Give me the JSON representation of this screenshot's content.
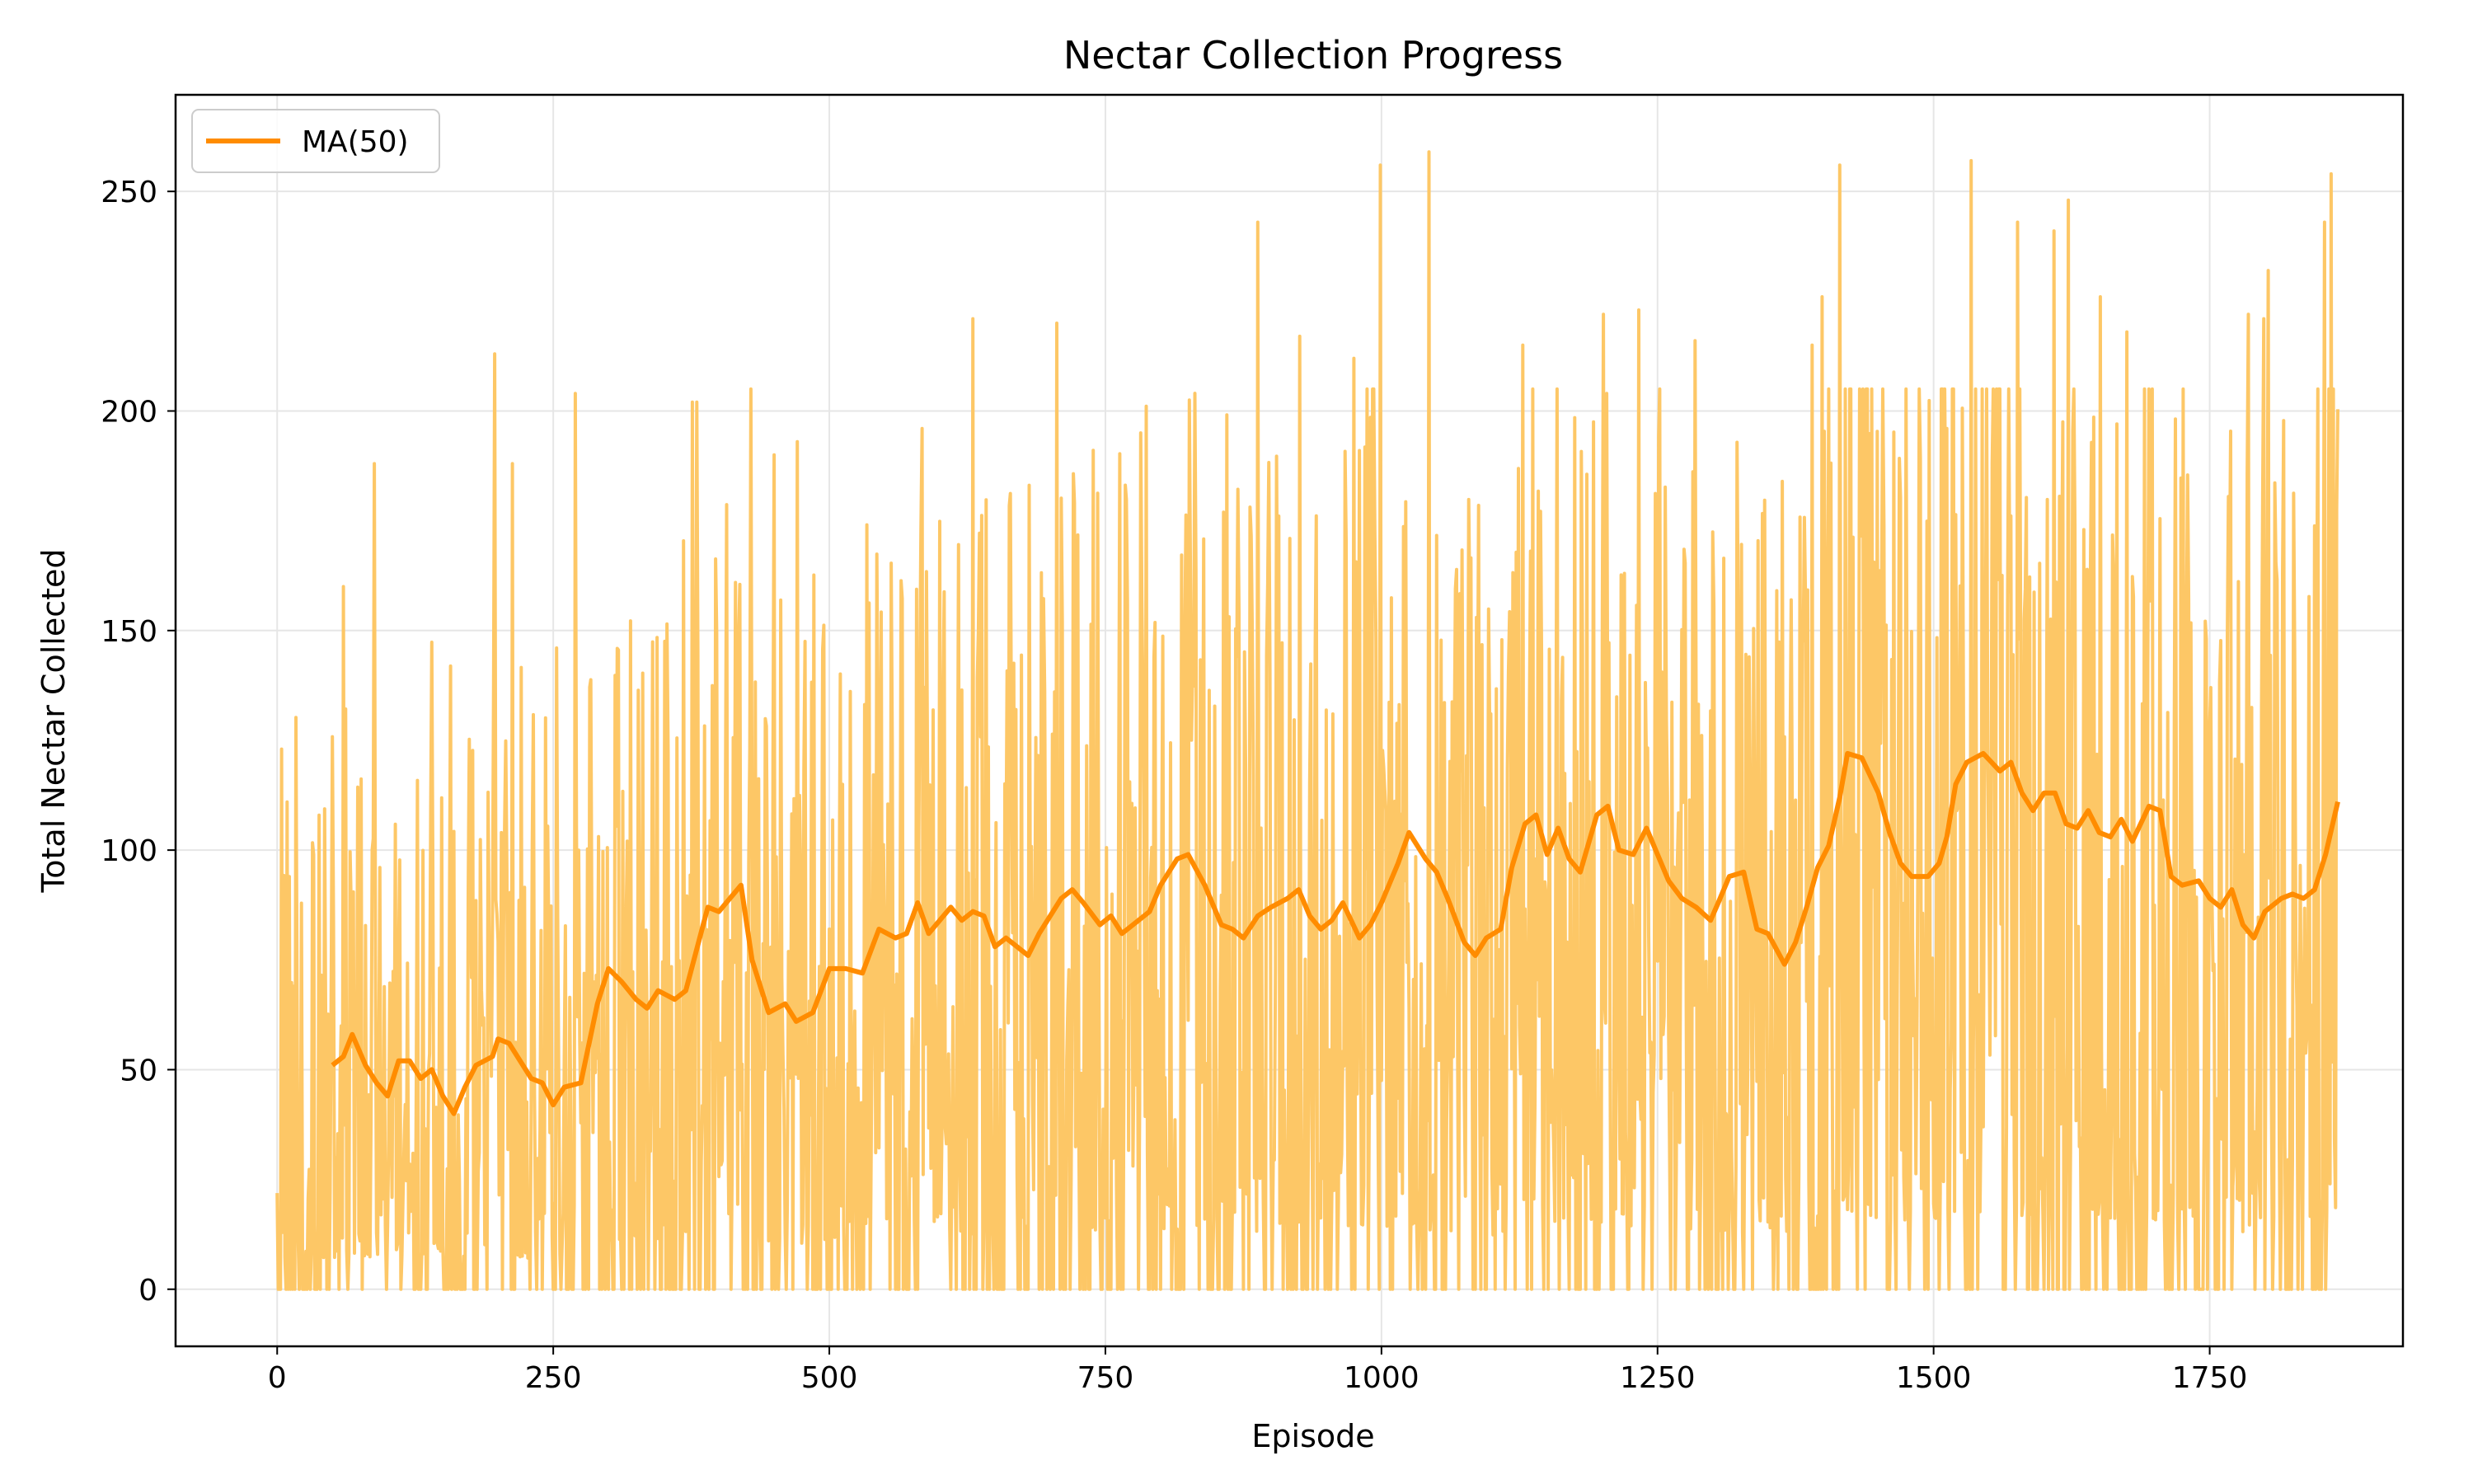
{
  "chart_data": {
    "type": "line",
    "title": "Nectar Collection Progress",
    "xlabel": "Episode",
    "ylabel": "Total Nectar Collected",
    "xlim": [
      -92,
      1925
    ],
    "ylim": [
      -13,
      272
    ],
    "x_ticks": [
      0,
      250,
      500,
      750,
      1000,
      1250,
      1500,
      1750
    ],
    "y_ticks": [
      0,
      50,
      100,
      150,
      200,
      250
    ],
    "grid": true,
    "legend_position": "top-left",
    "colors": {
      "raw": "#fdc766",
      "ma": "#ff8c00",
      "grid": "#e6e6e6",
      "axes": "#000000"
    },
    "series": [
      {
        "name": "",
        "kind": "raw",
        "x_start": 0,
        "x_end": 1866,
        "episodes": 1867,
        "trend_anchors": [
          [
            0,
            48
          ],
          [
            150,
            48
          ],
          [
            260,
            47
          ],
          [
            300,
            70
          ],
          [
            400,
            85
          ],
          [
            450,
            65
          ],
          [
            520,
            75
          ],
          [
            600,
            83
          ],
          [
            700,
            85
          ],
          [
            800,
            92
          ],
          [
            900,
            85
          ],
          [
            1000,
            95
          ],
          [
            1100,
            82
          ],
          [
            1150,
            103
          ],
          [
            1300,
            90
          ],
          [
            1380,
            80
          ],
          [
            1420,
            118
          ],
          [
            1480,
            95
          ],
          [
            1520,
            118
          ],
          [
            1600,
            110
          ],
          [
            1700,
            105
          ],
          [
            1800,
            83
          ],
          [
            1866,
            110
          ]
        ],
        "peaks": [
          [
            4,
            123
          ],
          [
            60,
            160
          ],
          [
            88,
            188
          ],
          [
            197,
            213
          ],
          [
            213,
            188
          ],
          [
            270,
            204
          ],
          [
            376,
            202
          ],
          [
            380,
            202
          ],
          [
            429,
            205
          ],
          [
            450,
            190
          ],
          [
            471,
            193
          ],
          [
            584,
            196
          ],
          [
            630,
            221
          ],
          [
            706,
            220
          ],
          [
            782,
            195
          ],
          [
            888,
            243
          ],
          [
            926,
            217
          ],
          [
            975,
            212
          ],
          [
            999,
            256
          ],
          [
            1043,
            259
          ],
          [
            1128,
            215
          ],
          [
            1201,
            222
          ],
          [
            1233,
            223
          ],
          [
            1284,
            216
          ],
          [
            1390,
            215
          ],
          [
            1399,
            226
          ],
          [
            1415,
            256
          ],
          [
            1534,
            257
          ],
          [
            1576,
            243
          ],
          [
            1609,
            241
          ],
          [
            1622,
            248
          ],
          [
            1651,
            226
          ],
          [
            1675,
            218
          ],
          [
            1785,
            222
          ],
          [
            1799,
            221
          ],
          [
            1803,
            232
          ],
          [
            1854,
            243
          ],
          [
            1860,
            254
          ]
        ]
      },
      {
        "name": "MA(50)",
        "kind": "moving_average",
        "window": 50,
        "points": [
          [
            50,
            51
          ],
          [
            60,
            53
          ],
          [
            68,
            58
          ],
          [
            80,
            51
          ],
          [
            90,
            47
          ],
          [
            100,
            44
          ],
          [
            110,
            52
          ],
          [
            120,
            52
          ],
          [
            130,
            48
          ],
          [
            140,
            50
          ],
          [
            150,
            44
          ],
          [
            160,
            40
          ],
          [
            170,
            46
          ],
          [
            180,
            51
          ],
          [
            195,
            53
          ],
          [
            200,
            57
          ],
          [
            210,
            56
          ],
          [
            220,
            52
          ],
          [
            230,
            48
          ],
          [
            240,
            47
          ],
          [
            250,
            42
          ],
          [
            260,
            46
          ],
          [
            275,
            47
          ],
          [
            290,
            65
          ],
          [
            300,
            73
          ],
          [
            312,
            70
          ],
          [
            325,
            66
          ],
          [
            335,
            64
          ],
          [
            345,
            68
          ],
          [
            360,
            66
          ],
          [
            370,
            68
          ],
          [
            390,
            87
          ],
          [
            400,
            86
          ],
          [
            410,
            89
          ],
          [
            420,
            92
          ],
          [
            430,
            75
          ],
          [
            445,
            63
          ],
          [
            460,
            65
          ],
          [
            470,
            61
          ],
          [
            485,
            63
          ],
          [
            500,
            73
          ],
          [
            515,
            73
          ],
          [
            530,
            72
          ],
          [
            545,
            82
          ],
          [
            560,
            80
          ],
          [
            570,
            81
          ],
          [
            580,
            88
          ],
          [
            590,
            81
          ],
          [
            600,
            84
          ],
          [
            610,
            87
          ],
          [
            620,
            84
          ],
          [
            630,
            86
          ],
          [
            640,
            85
          ],
          [
            650,
            78
          ],
          [
            660,
            80
          ],
          [
            670,
            78
          ],
          [
            680,
            76
          ],
          [
            690,
            81
          ],
          [
            700,
            85
          ],
          [
            710,
            89
          ],
          [
            720,
            91
          ],
          [
            730,
            88
          ],
          [
            745,
            83
          ],
          [
            755,
            85
          ],
          [
            765,
            81
          ],
          [
            775,
            83
          ],
          [
            790,
            86
          ],
          [
            800,
            92
          ],
          [
            815,
            98
          ],
          [
            825,
            99
          ],
          [
            840,
            92
          ],
          [
            855,
            83
          ],
          [
            865,
            82
          ],
          [
            875,
            80
          ],
          [
            888,
            85
          ],
          [
            900,
            87
          ],
          [
            915,
            89
          ],
          [
            925,
            91
          ],
          [
            935,
            85
          ],
          [
            945,
            82
          ],
          [
            955,
            84
          ],
          [
            965,
            88
          ],
          [
            980,
            80
          ],
          [
            990,
            83
          ],
          [
            1000,
            88
          ],
          [
            1015,
            97
          ],
          [
            1025,
            104
          ],
          [
            1040,
            98
          ],
          [
            1050,
            95
          ],
          [
            1060,
            89
          ],
          [
            1075,
            79
          ],
          [
            1085,
            76
          ],
          [
            1095,
            80
          ],
          [
            1108,
            82
          ],
          [
            1118,
            96
          ],
          [
            1130,
            106
          ],
          [
            1140,
            108
          ],
          [
            1150,
            99
          ],
          [
            1160,
            105
          ],
          [
            1170,
            98
          ],
          [
            1180,
            95
          ],
          [
            1195,
            108
          ],
          [
            1205,
            110
          ],
          [
            1215,
            100
          ],
          [
            1228,
            99
          ],
          [
            1240,
            105
          ],
          [
            1250,
            99
          ],
          [
            1260,
            93
          ],
          [
            1272,
            89
          ],
          [
            1285,
            87
          ],
          [
            1298,
            84
          ],
          [
            1305,
            88
          ],
          [
            1315,
            94
          ],
          [
            1328,
            95
          ],
          [
            1340,
            82
          ],
          [
            1350,
            81
          ],
          [
            1365,
            74
          ],
          [
            1375,
            79
          ],
          [
            1385,
            87
          ],
          [
            1395,
            96
          ],
          [
            1405,
            101
          ],
          [
            1415,
            112
          ],
          [
            1422,
            122
          ],
          [
            1435,
            121
          ],
          [
            1450,
            113
          ],
          [
            1460,
            104
          ],
          [
            1470,
            97
          ],
          [
            1480,
            94
          ],
          [
            1495,
            94
          ],
          [
            1505,
            97
          ],
          [
            1512,
            103
          ],
          [
            1520,
            115
          ],
          [
            1530,
            120
          ],
          [
            1545,
            122
          ],
          [
            1560,
            118
          ],
          [
            1570,
            120
          ],
          [
            1580,
            113
          ],
          [
            1590,
            109
          ],
          [
            1600,
            113
          ],
          [
            1610,
            113
          ],
          [
            1620,
            106
          ],
          [
            1630,
            105
          ],
          [
            1640,
            109
          ],
          [
            1650,
            104
          ],
          [
            1660,
            103
          ],
          [
            1670,
            107
          ],
          [
            1680,
            102
          ],
          [
            1695,
            110
          ],
          [
            1705,
            109
          ],
          [
            1715,
            94
          ],
          [
            1725,
            92
          ],
          [
            1740,
            93
          ],
          [
            1750,
            89
          ],
          [
            1760,
            87
          ],
          [
            1770,
            91
          ],
          [
            1780,
            83
          ],
          [
            1790,
            80
          ],
          [
            1800,
            86
          ],
          [
            1815,
            89
          ],
          [
            1825,
            90
          ],
          [
            1835,
            89
          ],
          [
            1845,
            91
          ],
          [
            1855,
            99
          ],
          [
            1866,
            111
          ]
        ]
      }
    ]
  }
}
